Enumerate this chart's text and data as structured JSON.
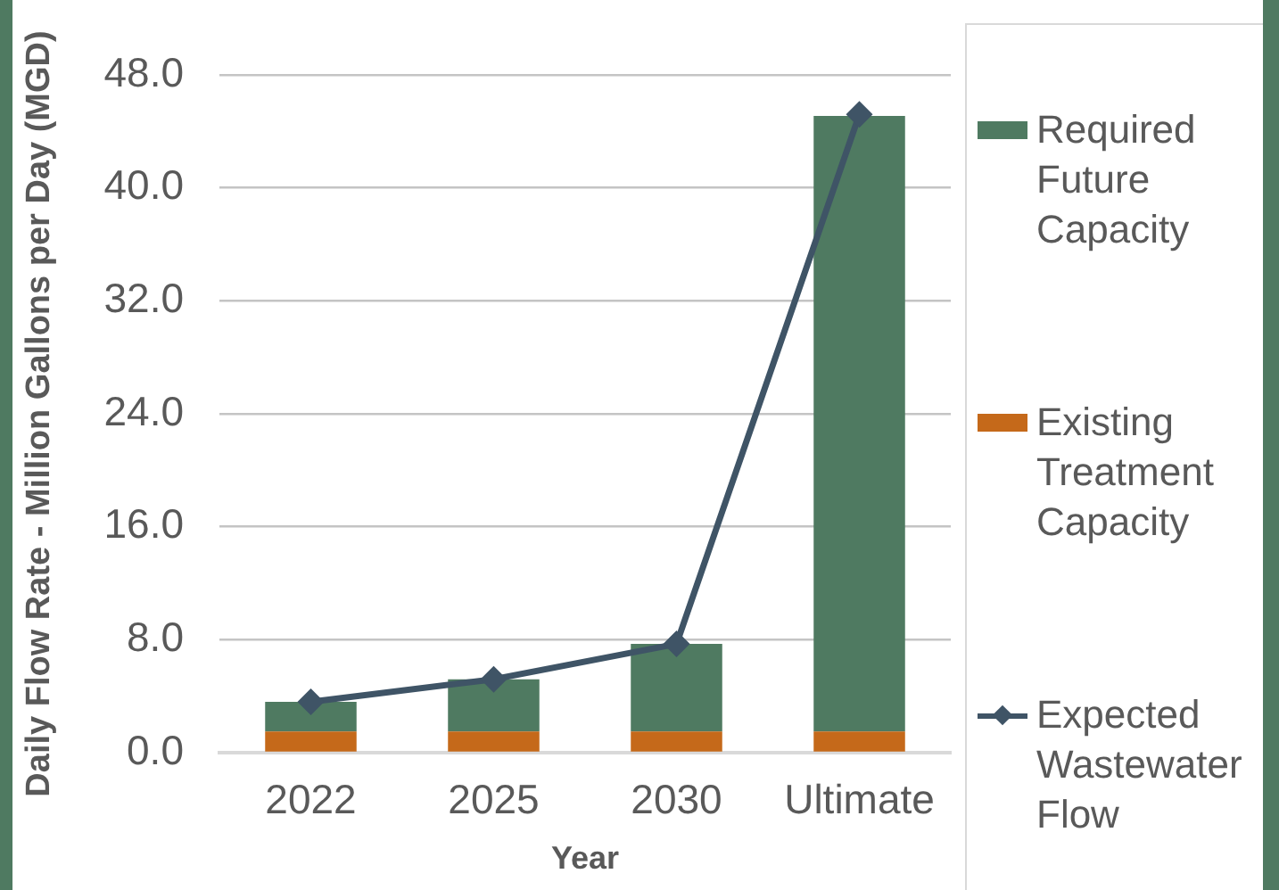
{
  "chart_data": {
    "type": "bar",
    "xlabel": "Year",
    "ylabel": "Daily Flow Rate - Million Gallons per Day (MGD)",
    "categories": [
      "2022",
      "2025",
      "2030",
      "Ultimate"
    ],
    "stacked": true,
    "series": [
      {
        "name": "Existing Treatment Capacity",
        "color": "#c5691a",
        "values": [
          1.5,
          1.5,
          1.5,
          1.5
        ]
      },
      {
        "name": "Required Future Capacity",
        "color": "#4f7a61",
        "values": [
          2.1,
          3.7,
          6.2,
          43.6
        ]
      },
      {
        "name": "Expected Wastewater Flow",
        "type": "line",
        "color": "#3f5466",
        "values": [
          3.6,
          5.2,
          7.7,
          45.2
        ]
      }
    ],
    "ylim": [
      0,
      48
    ],
    "yticks": [
      {
        "value": 0,
        "label": "0.0"
      },
      {
        "value": 8,
        "label": "8.0"
      },
      {
        "value": 16,
        "label": "16.0"
      },
      {
        "value": 24,
        "label": "24.0"
      },
      {
        "value": 32,
        "label": "32.0"
      },
      {
        "value": 40,
        "label": "40.0"
      },
      {
        "value": 48,
        "label": "48.0"
      }
    ],
    "grid": "y",
    "legend": "right",
    "marker": "diamond"
  }
}
